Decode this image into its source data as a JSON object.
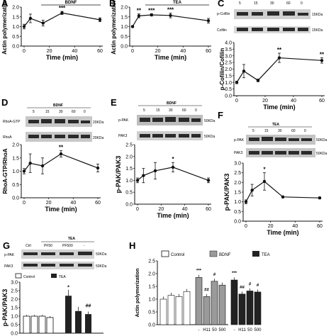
{
  "figure": {
    "panels": {
      "A": {
        "label": "A",
        "header": "BDNF"
      },
      "B": {
        "label": "B",
        "header": "TEA"
      },
      "C": {
        "label": "C",
        "blot_labels": [
          "p-Cofilin",
          "Cofilin"
        ],
        "kda": [
          "15KDa",
          "15KDa"
        ],
        "lanes": [
          "5",
          "15",
          "30",
          "60",
          "0"
        ]
      },
      "D": {
        "label": "D",
        "header": "BDNF",
        "blot_labels": [
          "RhoA-GTP",
          "RhoA"
        ],
        "kda": [
          "20KDa",
          "20KDa"
        ],
        "lanes": [
          "5",
          "15",
          "30",
          "60",
          "0"
        ]
      },
      "E": {
        "label": "E",
        "header": "BDNF",
        "blot_labels": [
          "p-PAK",
          "PAK3"
        ],
        "kda": [
          "50KDa",
          "50KDa"
        ],
        "lanes": [
          "5",
          "15",
          "30",
          "60",
          "0"
        ]
      },
      "F": {
        "label": "F",
        "header": "TEA",
        "blot_labels": [
          "p-PAK",
          "PAK3"
        ],
        "kda": [
          "50KDa",
          "50KDa"
        ],
        "lanes": [
          "5",
          "15",
          "30",
          "60",
          "0"
        ]
      },
      "G": {
        "label": "G",
        "header": "TEA",
        "blot_labels": [
          "p-PAK",
          "PAK3"
        ],
        "kda": [
          "50KDa",
          "50KDa"
        ],
        "lanes": [
          "Ctrl",
          "PF50",
          "PF500",
          "-"
        ],
        "legend": [
          "Control",
          "TEA"
        ]
      },
      "H": {
        "label": "H",
        "legend": [
          "Control",
          "BDNF",
          "TEA"
        ],
        "xlabels": [
          "-",
          "H11",
          "50",
          "500",
          "-",
          "H11",
          "50",
          "500"
        ]
      }
    }
  },
  "chart_data": [
    {
      "panel": "A",
      "type": "line",
      "title": "BDNF",
      "xlabel": "Time (min)",
      "ylabel": "Actin polymerization",
      "x": [
        0,
        5,
        15,
        30,
        60
      ],
      "y": [
        1.0,
        1.42,
        1.18,
        1.7,
        1.35
      ],
      "err": [
        0.12,
        0.22,
        0.15,
        0.08,
        0.1
      ],
      "ylim": [
        0.0,
        2.0
      ],
      "yticks": [
        "0.0",
        "0.5",
        "1.0",
        "1.5",
        "2.0"
      ],
      "xticks": [
        "0",
        "20",
        "40",
        "60"
      ],
      "annotations": [
        {
          "x": 30,
          "text": "***"
        }
      ]
    },
    {
      "panel": "B",
      "type": "line",
      "title": "TEA",
      "xlabel": "Time (min)",
      "ylabel": "Actin polymerization",
      "x": [
        0,
        5,
        15,
        30,
        60
      ],
      "y": [
        1.0,
        1.55,
        1.6,
        1.57,
        1.3
      ],
      "err": [
        0.05,
        0.1,
        0.06,
        0.12,
        0.12
      ],
      "ylim": [
        0.0,
        2.0
      ],
      "yticks": [
        "0.0",
        "0.5",
        "1.0",
        "1.5",
        "2.0"
      ],
      "xticks": [
        "0",
        "20",
        "40",
        "60"
      ],
      "annotations": [
        {
          "x": 5,
          "text": "**"
        },
        {
          "x": 15,
          "text": "***"
        },
        {
          "x": 30,
          "text": "***"
        }
      ]
    },
    {
      "panel": "C",
      "type": "line",
      "xlabel": "Time (min)",
      "ylabel": "p-Cofilin/Cofilin",
      "x": [
        0,
        5,
        15,
        30,
        60
      ],
      "y": [
        1.0,
        1.85,
        1.15,
        2.85,
        2.65
      ],
      "err": [
        0.1,
        0.5,
        0.1,
        0.35,
        0.2
      ],
      "ylim": [
        0.0,
        4.0
      ],
      "yticks": [
        "0.0",
        "0.5",
        "1.0",
        "1.5",
        "2.0",
        "2.5",
        "3.0",
        "3.5",
        "4.0"
      ],
      "xticks": [
        "0",
        "20",
        "40",
        "60"
      ],
      "annotations": [
        {
          "x": 30,
          "text": "**"
        },
        {
          "x": 60,
          "text": "**"
        }
      ]
    },
    {
      "panel": "D",
      "type": "line",
      "xlabel": "Time (min)",
      "ylabel": "RhoA-GTP/RhoA",
      "x": [
        0,
        5,
        15,
        30,
        60
      ],
      "y": [
        1.0,
        1.3,
        1.2,
        1.65,
        1.12
      ],
      "err": [
        0.1,
        0.35,
        0.3,
        0.12,
        0.15
      ],
      "ylim": [
        0.0,
        2.0
      ],
      "yticks": [
        "0.0",
        "0.5",
        "1.0",
        "1.5",
        "2.0"
      ],
      "xticks": [
        "0",
        "20",
        "40",
        "60"
      ],
      "annotations": [
        {
          "x": 30,
          "text": "**"
        }
      ]
    },
    {
      "panel": "E",
      "type": "line",
      "xlabel": "Time (min)",
      "ylabel": "p-PAK/PAK3",
      "x": [
        0,
        5,
        15,
        30,
        60
      ],
      "y": [
        1.0,
        1.2,
        1.4,
        1.55,
        1.0
      ],
      "err": [
        0.1,
        0.3,
        0.35,
        0.2,
        0.1
      ],
      "ylim": [
        0.0,
        2.5
      ],
      "yticks": [
        "0.0",
        "0.5",
        "1.0",
        "1.5",
        "2.0",
        "2.5"
      ],
      "xticks": [
        "0",
        "20",
        "40",
        "60"
      ],
      "annotations": [
        {
          "x": 30,
          "text": "*"
        }
      ]
    },
    {
      "panel": "F",
      "type": "line",
      "xlabel": "Time (min)",
      "ylabel": "p-PAK/PAK3",
      "x": [
        0,
        5,
        15,
        30,
        60
      ],
      "y": [
        1.0,
        1.6,
        2.05,
        1.25,
        1.2
      ],
      "err": [
        0.1,
        0.3,
        0.45,
        0.05,
        0.05
      ],
      "ylim": [
        0.0,
        3.0
      ],
      "yticks": [
        "0.0",
        "0.5",
        "1.0",
        "1.5",
        "2.0",
        "2.5",
        "3.0"
      ],
      "xticks": [
        "0",
        "20",
        "40",
        "60"
      ],
      "annotations": [
        {
          "x": 15,
          "text": "*"
        }
      ]
    },
    {
      "panel": "G",
      "type": "bar",
      "ylabel": "p-PAK/PAK3",
      "series": [
        {
          "name": "Control",
          "values": [
            1.0,
            1.0,
            1.0,
            0.92
          ]
        },
        {
          "name": "TEA",
          "values": [
            2.2,
            1.3,
            1.12
          ]
        }
      ],
      "ylim": [
        0.0,
        3.0
      ],
      "yticks": [
        "0.0",
        "0.5",
        "1.0",
        "1.5",
        "2.0",
        "2.5",
        "3.0"
      ],
      "annotations": [
        {
          "series": "TEA",
          "index": 0,
          "text": "*"
        },
        {
          "series": "TEA",
          "index": 2,
          "text": "##"
        }
      ]
    },
    {
      "panel": "H",
      "type": "bar",
      "ylabel": "Actin polymerization",
      "series": [
        {
          "name": "Control",
          "values": [
            1.0,
            1.15,
            1.1,
            1.3
          ]
        },
        {
          "name": "BDNF",
          "values": [
            1.85,
            1.1,
            1.7,
            1.55
          ]
        },
        {
          "name": "TEA",
          "values": [
            1.75,
            1.2,
            1.32,
            1.28
          ]
        }
      ],
      "ylim": [
        0.0,
        2.5
      ],
      "yticks": [
        "0.0",
        "0.5",
        "1.0",
        "1.5",
        "2.0",
        "2.5"
      ],
      "annotations": [
        {
          "series": "BDNF",
          "index": 0,
          "text": "***"
        },
        {
          "series": "BDNF",
          "index": 1,
          "text": "##"
        },
        {
          "series": "BDNF",
          "index": 2,
          "text": "#"
        },
        {
          "series": "TEA",
          "index": 0,
          "text": "***"
        },
        {
          "series": "TEA",
          "index": 1,
          "text": "##"
        },
        {
          "series": "TEA",
          "index": 2,
          "text": "#"
        },
        {
          "series": "TEA",
          "index": 3,
          "text": "#"
        }
      ]
    }
  ]
}
